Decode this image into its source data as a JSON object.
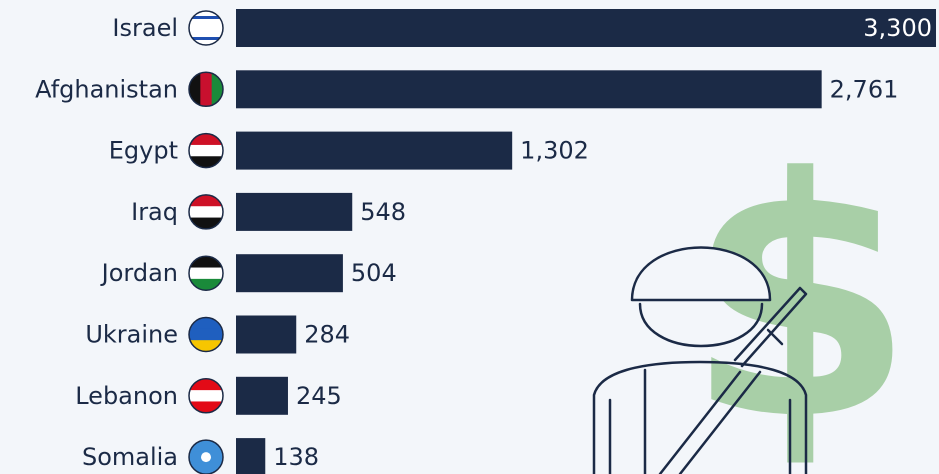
{
  "chart_data": {
    "type": "bar",
    "orientation": "horizontal",
    "categories": [
      "Israel",
      "Afghanistan",
      "Egypt",
      "Iraq",
      "Jordan",
      "Ukraine",
      "Lebanon",
      "Somalia"
    ],
    "values": [
      3300,
      2761,
      1302,
      548,
      504,
      284,
      245,
      138
    ],
    "value_labels": [
      "3,300",
      "2,761",
      "1,302",
      "548",
      "504",
      "284",
      "245",
      "138"
    ],
    "color": "#1b2a46"
  }
}
